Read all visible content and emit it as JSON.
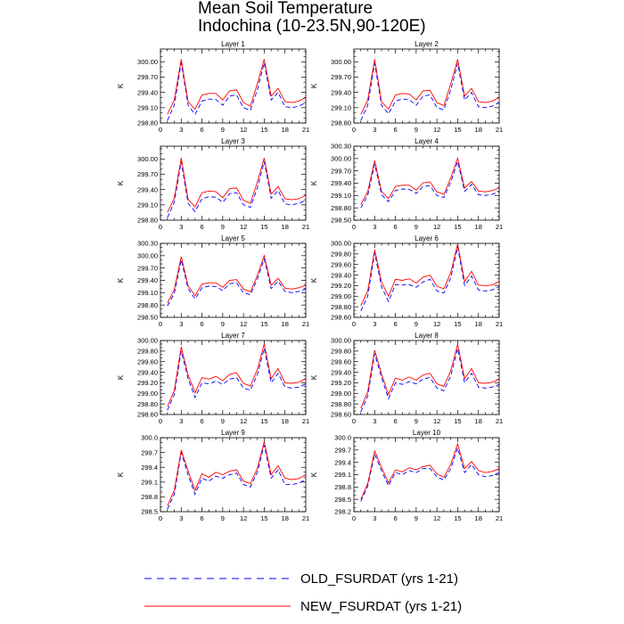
{
  "title": "Mean Soil Temperature",
  "subtitle": "Indochina (10-23.5N,90-120E)",
  "legend": [
    {
      "name": "OLD_FSURDAT (yrs 1-21)",
      "color": "#0000ff",
      "dash": "dashed"
    },
    {
      "name": "NEW_FSURDAT (yrs 1-21)",
      "color": "#ff0000",
      "dash": "solid"
    }
  ],
  "chart_data": [
    {
      "type": "line",
      "title": "Layer 1",
      "ylabel": "K",
      "x": [
        1,
        2,
        3,
        4,
        5,
        6,
        7,
        8,
        9,
        10,
        11,
        12,
        13,
        14,
        15,
        16,
        17,
        18,
        19,
        20,
        21
      ],
      "xlim": [
        0,
        21
      ],
      "xticks": [
        0,
        3,
        6,
        9,
        12,
        15,
        18,
        21
      ],
      "ylim": [
        298.8,
        300.25
      ],
      "yticks": [
        "298.80",
        "299.10",
        "299.40",
        "299.70",
        "300.00"
      ],
      "series": [
        {
          "name": "OLD_FSURDAT (yrs 1-21)",
          "values": [
            298.85,
            299.15,
            299.98,
            299.15,
            298.97,
            299.23,
            299.27,
            299.26,
            299.15,
            299.33,
            299.35,
            299.1,
            299.05,
            299.45,
            299.98,
            299.25,
            299.4,
            299.12,
            299.1,
            299.13,
            299.2
          ]
        },
        {
          "name": "NEW_FSURDAT (yrs 1-21)",
          "values": [
            298.97,
            299.25,
            300.05,
            299.22,
            299.07,
            299.35,
            299.38,
            299.38,
            299.25,
            299.43,
            299.45,
            299.2,
            299.13,
            299.57,
            300.05,
            299.33,
            299.48,
            299.22,
            299.2,
            299.23,
            299.3
          ]
        }
      ]
    },
    {
      "type": "line",
      "title": "Layer 2",
      "ylabel": "K",
      "x": [
        1,
        2,
        3,
        4,
        5,
        6,
        7,
        8,
        9,
        10,
        11,
        12,
        13,
        14,
        15,
        16,
        17,
        18,
        19,
        20,
        21
      ],
      "xlim": [
        0,
        21
      ],
      "xticks": [
        0,
        3,
        6,
        9,
        12,
        15,
        18,
        21
      ],
      "ylim": [
        298.8,
        300.25
      ],
      "yticks": [
        "298.80",
        "299.10",
        "299.40",
        "299.70",
        "300.00"
      ],
      "series": [
        {
          "name": "OLD_FSURDAT (yrs 1-21)",
          "values": [
            298.85,
            299.15,
            299.97,
            299.15,
            298.98,
            299.23,
            299.27,
            299.26,
            299.15,
            299.33,
            299.35,
            299.1,
            299.06,
            299.45,
            299.97,
            299.25,
            299.4,
            299.12,
            299.1,
            299.13,
            299.2
          ]
        },
        {
          "name": "NEW_FSURDAT (yrs 1-21)",
          "values": [
            298.97,
            299.25,
            300.05,
            299.22,
            299.07,
            299.35,
            299.38,
            299.37,
            299.25,
            299.43,
            299.44,
            299.2,
            299.14,
            299.57,
            300.05,
            299.33,
            299.48,
            299.22,
            299.2,
            299.23,
            299.3
          ]
        }
      ]
    },
    {
      "type": "line",
      "title": "Layer 3",
      "ylabel": "K",
      "x": [
        1,
        2,
        3,
        4,
        5,
        6,
        7,
        8,
        9,
        10,
        11,
        12,
        13,
        14,
        15,
        16,
        17,
        18,
        19,
        20,
        21
      ],
      "xlim": [
        0,
        21
      ],
      "xticks": [
        0,
        3,
        6,
        9,
        12,
        15,
        18,
        21
      ],
      "ylim": [
        298.8,
        300.25
      ],
      "yticks": [
        "298.80",
        "299.10",
        "299.40",
        "299.70",
        "300.00"
      ],
      "series": [
        {
          "name": "OLD_FSURDAT (yrs 1-21)",
          "values": [
            298.85,
            299.15,
            299.95,
            299.13,
            298.97,
            299.22,
            299.26,
            299.25,
            299.15,
            299.32,
            299.34,
            299.1,
            299.05,
            299.43,
            299.95,
            299.23,
            299.38,
            299.12,
            299.1,
            299.13,
            299.19
          ]
        },
        {
          "name": "NEW_FSURDAT (yrs 1-21)",
          "values": [
            298.95,
            299.23,
            300.02,
            299.21,
            299.06,
            299.34,
            299.37,
            299.36,
            299.24,
            299.42,
            299.43,
            299.19,
            299.13,
            299.55,
            300.02,
            299.31,
            299.46,
            299.22,
            299.2,
            299.22,
            299.29
          ]
        }
      ]
    },
    {
      "type": "line",
      "title": "Layer 4",
      "ylabel": "K",
      "x": [
        1,
        2,
        3,
        4,
        5,
        6,
        7,
        8,
        9,
        10,
        11,
        12,
        13,
        14,
        15,
        16,
        17,
        18,
        19,
        20,
        21
      ],
      "xlim": [
        0,
        21
      ],
      "xticks": [
        0,
        3,
        6,
        9,
        12,
        15,
        18,
        21
      ],
      "ylim": [
        298.5,
        300.3
      ],
      "yticks": [
        "298.50",
        "298.80",
        "299.10",
        "299.40",
        "299.70",
        "300.00",
        "300.30"
      ],
      "series": [
        {
          "name": "OLD_FSURDAT (yrs 1-21)",
          "values": [
            298.8,
            299.1,
            299.87,
            299.12,
            298.95,
            299.22,
            299.26,
            299.25,
            299.15,
            299.32,
            299.34,
            299.1,
            299.05,
            299.43,
            299.93,
            299.2,
            299.37,
            299.12,
            299.1,
            299.13,
            299.19
          ]
        },
        {
          "name": "NEW_FSURDAT (yrs 1-21)",
          "values": [
            298.88,
            299.19,
            299.95,
            299.2,
            299.03,
            299.32,
            299.35,
            299.35,
            299.23,
            299.41,
            299.43,
            299.19,
            299.13,
            299.53,
            300.01,
            299.28,
            299.44,
            299.21,
            299.19,
            299.22,
            299.28
          ]
        }
      ]
    },
    {
      "type": "line",
      "title": "Layer 5",
      "ylabel": "K",
      "x": [
        1,
        2,
        3,
        4,
        5,
        6,
        7,
        8,
        9,
        10,
        11,
        12,
        13,
        14,
        15,
        16,
        17,
        18,
        19,
        20,
        21
      ],
      "xlim": [
        0,
        21
      ],
      "xticks": [
        0,
        3,
        6,
        9,
        12,
        15,
        18,
        21
      ],
      "ylim": [
        298.5,
        300.3
      ],
      "yticks": [
        "298.50",
        "298.80",
        "299.10",
        "299.40",
        "299.70",
        "300.00",
        "300.30"
      ],
      "series": [
        {
          "name": "OLD_FSURDAT (yrs 1-21)",
          "values": [
            298.78,
            299.08,
            299.9,
            299.2,
            298.95,
            299.22,
            299.26,
            299.25,
            299.15,
            299.32,
            299.34,
            299.1,
            299.05,
            299.43,
            299.92,
            299.2,
            299.38,
            299.13,
            299.1,
            299.13,
            299.19
          ]
        },
        {
          "name": "NEW_FSURDAT (yrs 1-21)",
          "values": [
            298.85,
            299.17,
            299.98,
            299.27,
            299.03,
            299.31,
            299.34,
            299.34,
            299.23,
            299.4,
            299.42,
            299.19,
            299.12,
            299.52,
            300.0,
            299.28,
            299.45,
            299.21,
            299.19,
            299.22,
            299.28
          ]
        }
      ]
    },
    {
      "type": "line",
      "title": "Layer 6",
      "ylabel": "K",
      "x": [
        1,
        2,
        3,
        4,
        5,
        6,
        7,
        8,
        9,
        10,
        11,
        12,
        13,
        14,
        15,
        16,
        17,
        18,
        19,
        20,
        21
      ],
      "xlim": [
        0,
        21
      ],
      "xticks": [
        0,
        3,
        6,
        9,
        12,
        15,
        18,
        21
      ],
      "ylim": [
        298.6,
        300.0
      ],
      "yticks": [
        "298.60",
        "298.80",
        "299.00",
        "299.20",
        "299.40",
        "299.60",
        "299.80",
        "300.00"
      ],
      "series": [
        {
          "name": "OLD_FSURDAT (yrs 1-21)",
          "values": [
            298.72,
            299.0,
            299.82,
            299.18,
            298.9,
            299.22,
            299.21,
            299.22,
            299.17,
            299.27,
            299.32,
            299.1,
            299.06,
            299.35,
            299.93,
            299.2,
            299.38,
            299.12,
            299.1,
            299.12,
            299.18
          ]
        },
        {
          "name": "NEW_FSURDAT (yrs 1-21)",
          "values": [
            298.82,
            299.1,
            299.88,
            299.27,
            299.0,
            299.32,
            299.3,
            299.33,
            299.25,
            299.36,
            299.4,
            299.19,
            299.14,
            299.45,
            299.99,
            299.28,
            299.47,
            299.21,
            299.2,
            299.21,
            299.28
          ]
        }
      ]
    },
    {
      "type": "line",
      "title": "Layer 7",
      "ylabel": "K",
      "x": [
        1,
        2,
        3,
        4,
        5,
        6,
        7,
        8,
        9,
        10,
        11,
        12,
        13,
        14,
        15,
        16,
        17,
        18,
        19,
        20,
        21
      ],
      "xlim": [
        0,
        21
      ],
      "xticks": [
        0,
        3,
        6,
        9,
        12,
        15,
        18,
        21
      ],
      "ylim": [
        298.6,
        300.0
      ],
      "yticks": [
        "298.60",
        "298.80",
        "299.00",
        "299.20",
        "299.40",
        "299.60",
        "299.80",
        "300.00"
      ],
      "series": [
        {
          "name": "OLD_FSURDAT (yrs 1-21)",
          "values": [
            298.68,
            298.98,
            299.8,
            299.28,
            298.92,
            299.2,
            299.18,
            299.23,
            299.17,
            299.27,
            299.3,
            299.1,
            299.06,
            299.35,
            299.85,
            299.2,
            299.38,
            299.12,
            299.1,
            299.12,
            299.18
          ]
        },
        {
          "name": "NEW_FSURDAT (yrs 1-21)",
          "values": [
            298.75,
            299.05,
            299.88,
            299.35,
            299.01,
            299.3,
            299.27,
            299.32,
            299.24,
            299.36,
            299.39,
            299.19,
            299.14,
            299.45,
            299.94,
            299.28,
            299.47,
            299.2,
            299.19,
            299.21,
            299.28
          ]
        }
      ]
    },
    {
      "type": "line",
      "title": "Layer 8",
      "ylabel": "K",
      "x": [
        1,
        2,
        3,
        4,
        5,
        6,
        7,
        8,
        9,
        10,
        11,
        12,
        13,
        14,
        15,
        16,
        17,
        18,
        19,
        20,
        21
      ],
      "xlim": [
        0,
        21
      ],
      "xticks": [
        0,
        3,
        6,
        9,
        12,
        15,
        18,
        21
      ],
      "ylim": [
        298.6,
        300.0
      ],
      "yticks": [
        "298.60",
        "298.80",
        "299.00",
        "299.20",
        "299.40",
        "299.60",
        "299.80",
        "300.00"
      ],
      "series": [
        {
          "name": "OLD_FSURDAT (yrs 1-21)",
          "values": [
            298.65,
            298.95,
            299.75,
            299.3,
            298.9,
            299.2,
            299.17,
            299.22,
            299.18,
            299.27,
            299.3,
            299.1,
            299.05,
            299.33,
            299.85,
            299.2,
            299.38,
            299.12,
            299.1,
            299.12,
            299.17
          ]
        },
        {
          "name": "NEW_FSURDAT (yrs 1-21)",
          "values": [
            298.72,
            299.03,
            299.82,
            299.37,
            298.98,
            299.29,
            299.25,
            299.31,
            299.25,
            299.35,
            299.38,
            299.18,
            299.13,
            299.43,
            299.93,
            299.28,
            299.47,
            299.2,
            299.19,
            299.21,
            299.27
          ]
        }
      ]
    },
    {
      "type": "line",
      "title": "Layer 9",
      "ylabel": "K",
      "x": [
        1,
        2,
        3,
        4,
        5,
        6,
        7,
        8,
        9,
        10,
        11,
        12,
        13,
        14,
        15,
        16,
        17,
        18,
        19,
        20,
        21
      ],
      "xlim": [
        0,
        21
      ],
      "xticks": [
        0,
        3,
        6,
        9,
        12,
        15,
        18,
        21
      ],
      "ylim": [
        298.5,
        300.0
      ],
      "yticks": [
        "298.5",
        "298.8",
        "299.1",
        "299.4",
        "299.7",
        "300.0"
      ],
      "series": [
        {
          "name": "OLD_FSURDAT (yrs 1-21)",
          "values": [
            298.55,
            298.85,
            299.7,
            299.25,
            298.85,
            299.18,
            299.12,
            299.22,
            299.18,
            299.25,
            299.28,
            299.05,
            299.0,
            299.3,
            299.85,
            299.18,
            299.35,
            299.05,
            299.05,
            299.08,
            299.15
          ]
        },
        {
          "name": "NEW_FSURDAT (yrs 1-21)",
          "values": [
            298.62,
            298.93,
            299.75,
            299.33,
            298.93,
            299.27,
            299.2,
            299.3,
            299.25,
            299.32,
            299.35,
            299.12,
            299.07,
            299.38,
            299.92,
            299.25,
            299.43,
            299.18,
            299.15,
            299.17,
            299.25
          ]
        }
      ]
    },
    {
      "type": "line",
      "title": "Layer 10",
      "ylabel": "K",
      "x": [
        1,
        2,
        3,
        4,
        5,
        6,
        7,
        8,
        9,
        10,
        11,
        12,
        13,
        14,
        15,
        16,
        17,
        18,
        19,
        20,
        21
      ],
      "xlim": [
        0,
        21
      ],
      "xticks": [
        0,
        3,
        6,
        9,
        12,
        15,
        18,
        21
      ],
      "ylim": [
        298.2,
        300.0
      ],
      "yticks": [
        "298.2",
        "298.5",
        "298.8",
        "299.1",
        "299.4",
        "299.7",
        "300.0"
      ],
      "series": [
        {
          "name": "OLD_FSURDAT (yrs 1-21)",
          "values": [
            298.45,
            298.82,
            299.6,
            299.2,
            298.83,
            299.15,
            299.1,
            299.2,
            299.15,
            299.25,
            299.25,
            299.05,
            298.97,
            299.25,
            299.75,
            299.15,
            299.35,
            299.1,
            299.05,
            299.08,
            299.15
          ]
        },
        {
          "name": "NEW_FSURDAT (yrs 1-21)",
          "values": [
            298.5,
            298.88,
            299.68,
            299.28,
            298.9,
            299.22,
            299.17,
            299.27,
            299.22,
            299.3,
            299.33,
            299.12,
            299.04,
            299.35,
            299.85,
            299.25,
            299.42,
            299.2,
            299.15,
            299.18,
            299.25
          ]
        }
      ]
    }
  ]
}
